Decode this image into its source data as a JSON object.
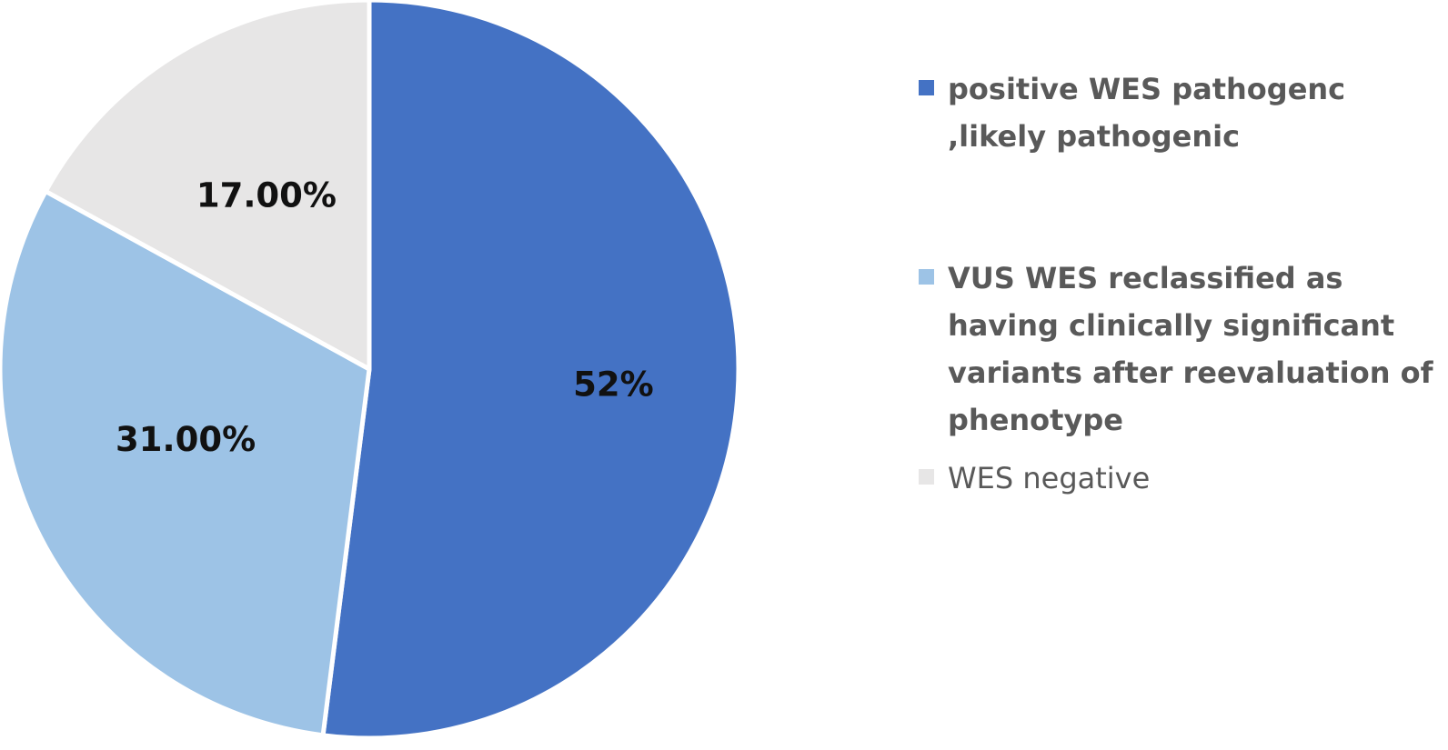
{
  "chart_data": {
    "type": "pie",
    "title": "",
    "slices": [
      {
        "name": "positive WES pathogenc ,likely pathogenic",
        "value": 52,
        "label": "52%",
        "color": "#4472c4",
        "legend_bold": true
      },
      {
        "name": "VUS WES reclassified as having clinically significant variants after reevaluation of phenotype",
        "value": 31,
        "label": "31.00%",
        "color": "#9dc3e6",
        "legend_bold": true
      },
      {
        "name": "WES negative",
        "value": 17,
        "label": "17.00%",
        "color": "#e7e6e6",
        "legend_bold": false
      }
    ],
    "start_angle_deg": 0,
    "direction": "clockwise",
    "legend_position": "right",
    "slice_separator_color": "#ffffff"
  }
}
